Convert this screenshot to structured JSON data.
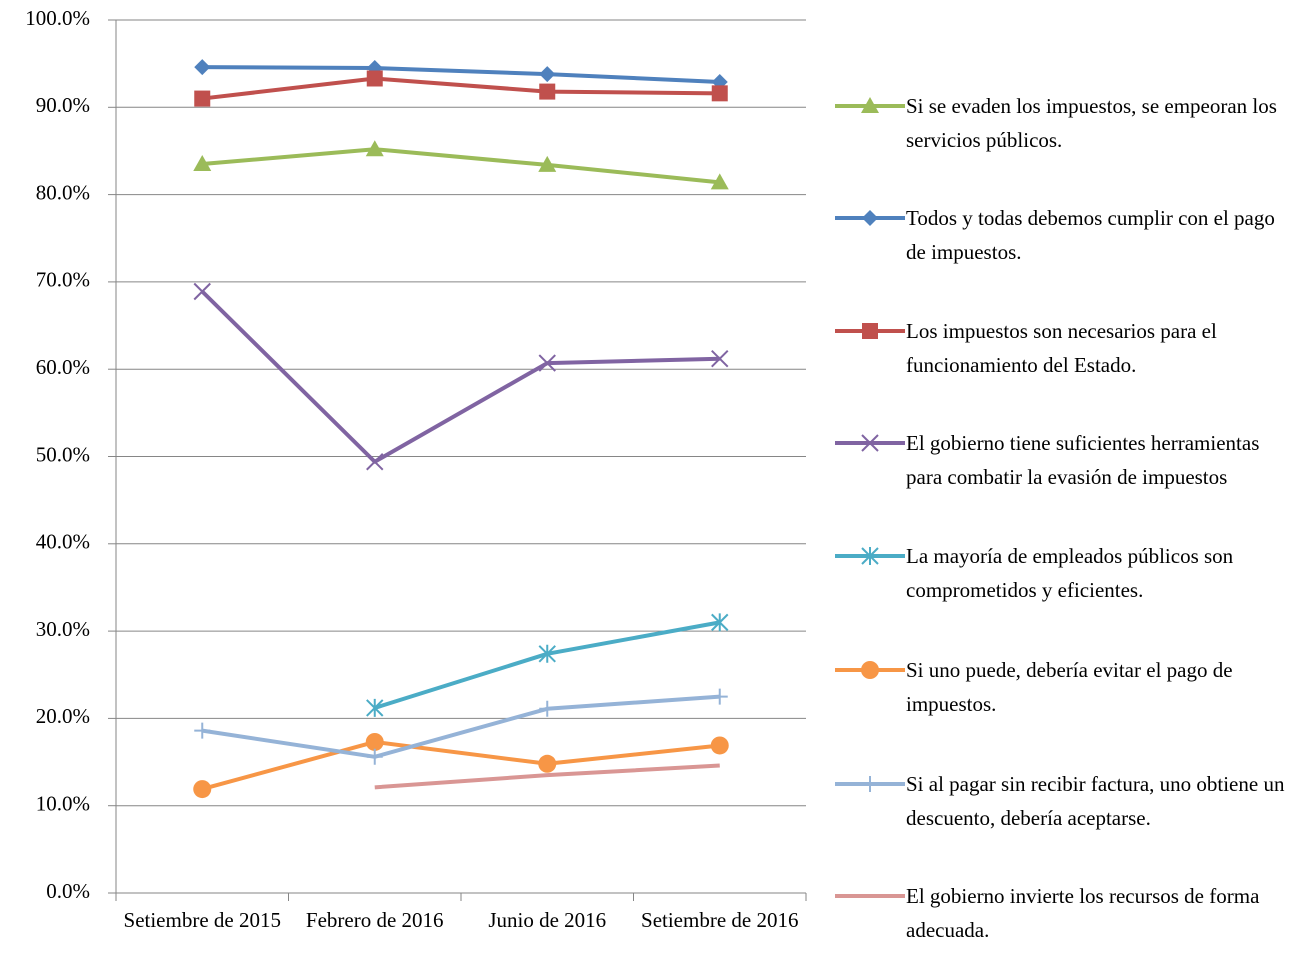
{
  "chart_data": {
    "type": "line",
    "categories": [
      "Setiembre de 2015",
      "Febrero de 2016",
      "Junio de 2016",
      "Setiembre de 2016"
    ],
    "ylim": [
      0,
      100
    ],
    "yticks": [
      {
        "value": 0,
        "label": "0.0%"
      },
      {
        "value": 10,
        "label": "10.0%"
      },
      {
        "value": 20,
        "label": "20.0%"
      },
      {
        "value": 30,
        "label": "30.0%"
      },
      {
        "value": 40,
        "label": "40.0%"
      },
      {
        "value": 50,
        "label": "50.0%"
      },
      {
        "value": 60,
        "label": "60.0%"
      },
      {
        "value": 70,
        "label": "70.0%"
      },
      {
        "value": 80,
        "label": "80.0%"
      },
      {
        "value": 90,
        "label": "90.0%"
      },
      {
        "value": 100,
        "label": "100.0%"
      }
    ],
    "grid": true,
    "legend": "right",
    "series": [
      {
        "name": "Si se evaden los impuestos, se empeoran los servicios públicos.",
        "color": "#9bbb59",
        "marker": "triangle",
        "values": [
          83.5,
          85.2,
          83.4,
          81.4
        ]
      },
      {
        "name": "Todos y todas debemos cumplir con el pago de impuestos.",
        "color": "#4f81bd",
        "marker": "diamond",
        "values": [
          94.6,
          94.5,
          93.8,
          92.9
        ]
      },
      {
        "name": "Los impuestos son necesarios para el funcionamiento del Estado.",
        "color": "#c0504d",
        "marker": "square",
        "values": [
          91.0,
          93.3,
          91.8,
          91.6
        ]
      },
      {
        "name": "El gobierno tiene suficientes herramientas para combatir la evasión de impuestos",
        "color": "#8064a2",
        "marker": "x",
        "values": [
          68.9,
          49.4,
          60.7,
          61.2
        ]
      },
      {
        "name": "La mayoría de empleados públicos son comprometidos y eficientes.",
        "color": "#4bacc6",
        "marker": "star",
        "values": [
          null,
          21.2,
          27.4,
          31.0
        ]
      },
      {
        "name": "Si uno puede, debería evitar el pago de impuestos.",
        "color": "#f79646",
        "marker": "circle",
        "values": [
          11.9,
          17.3,
          14.8,
          16.9
        ]
      },
      {
        "name": "Si al pagar sin recibir factura, uno obtiene un descuento, debería aceptarse.",
        "color": "#95b3d7",
        "marker": "plus",
        "values": [
          18.6,
          15.6,
          21.1,
          22.5
        ]
      },
      {
        "name": "El gobierno invierte los recursos de forma adecuada.",
        "color": "#d99694",
        "marker": "none",
        "values": [
          null,
          12.1,
          13.5,
          14.6
        ]
      }
    ]
  }
}
